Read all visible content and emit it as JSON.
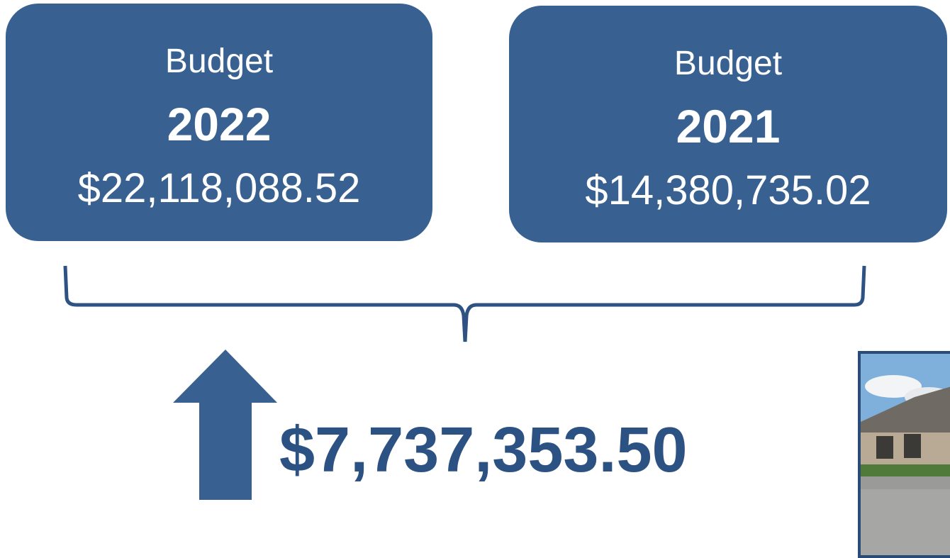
{
  "boxes": [
    {
      "label": "Budget",
      "year": "2022",
      "amount": "$22,118,088.52"
    },
    {
      "label": "Budget",
      "year": "2021",
      "amount": "$14,380,735.02"
    }
  ],
  "difference": "$7,737,353.50"
}
